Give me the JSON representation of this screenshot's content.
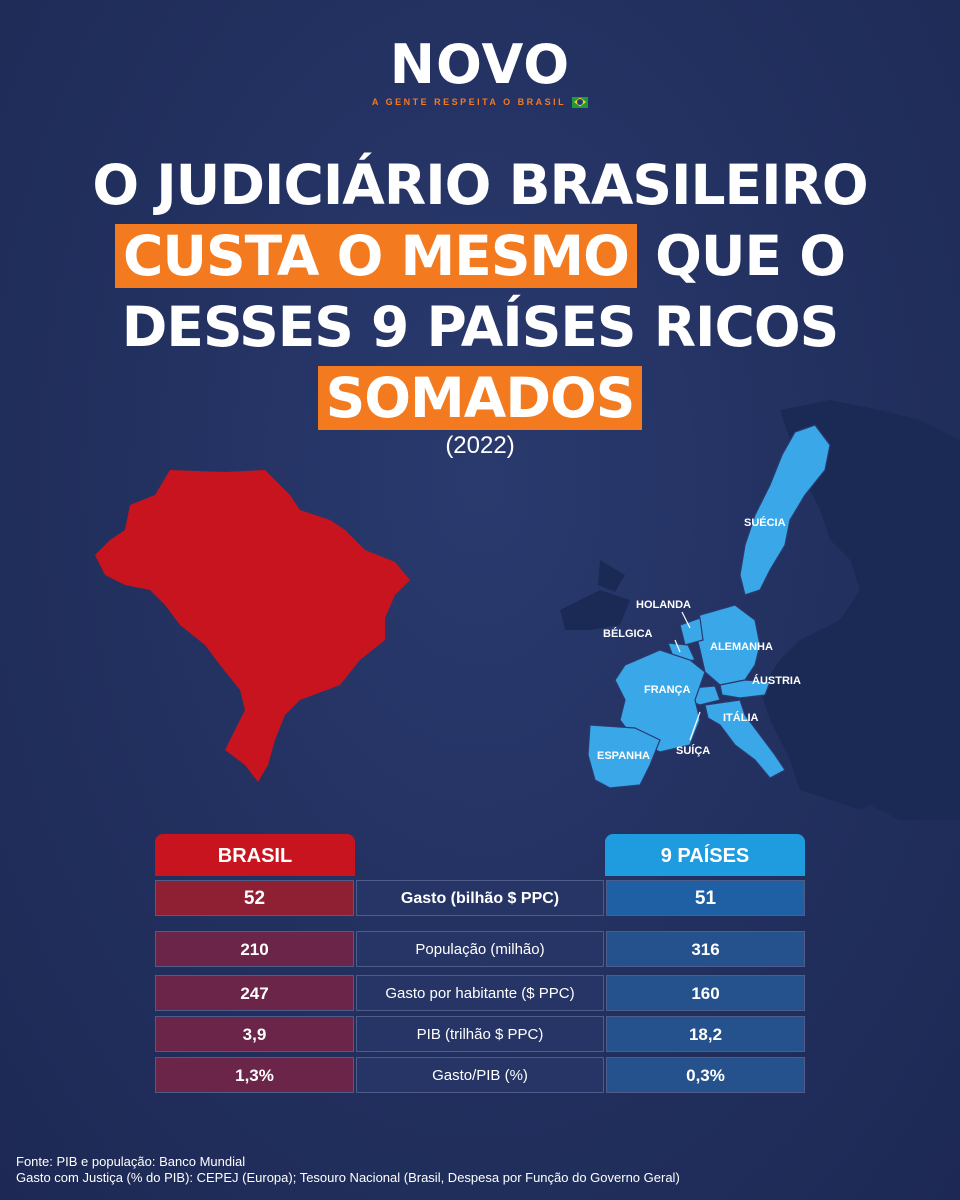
{
  "logo": {
    "name": "NOVO",
    "tagline": "A GENTE RESPEITA O BRASIL"
  },
  "headline": {
    "line1": "O JUDICIÁRIO BRASILEIRO",
    "line2_highlight": "CUSTA O MESMO",
    "line2_rest": " QUE O",
    "line3": "DESSES 9 PAÍSES RICOS",
    "line4_highlight": "SOMADOS"
  },
  "year": "(2022)",
  "map": {
    "brazil_color": "#c8141e",
    "europe_color": "#3aa7e8",
    "countries": [
      "SUÉCIA",
      "HOLANDA",
      "BÉLGICA",
      "ALEMANHA",
      "ÁUSTRIA",
      "FRANÇA",
      "ITÁLIA",
      "SUÍÇA",
      "ESPANHA"
    ]
  },
  "table": {
    "header_brasil": "BRASIL",
    "header_paises": "9 PAÍSES",
    "rows": [
      {
        "brasil": "52",
        "label": "Gasto (bilhão $ PPC)",
        "paises": "51"
      },
      {
        "brasil": "210",
        "label": "População (milhão)",
        "paises": "316"
      },
      {
        "brasil": "247",
        "label": "Gasto por habitante ($ PPC)",
        "paises": "160"
      },
      {
        "brasil": "3,9",
        "label": "PIB (trilhão $ PPC)",
        "paises": "18,2"
      },
      {
        "brasil": "1,3%",
        "label": "Gasto/PIB (%)",
        "paises": "0,3%"
      }
    ]
  },
  "source": {
    "line1": "Fonte: PIB e população: Banco Mundial",
    "line2": "Gasto com Justiça (% do PIB): CEPEJ (Europa); Tesouro Nacional (Brasil, Despesa por Função do Governo Geral)"
  },
  "colors": {
    "accent": "#f47a20",
    "background": "#22305f"
  }
}
